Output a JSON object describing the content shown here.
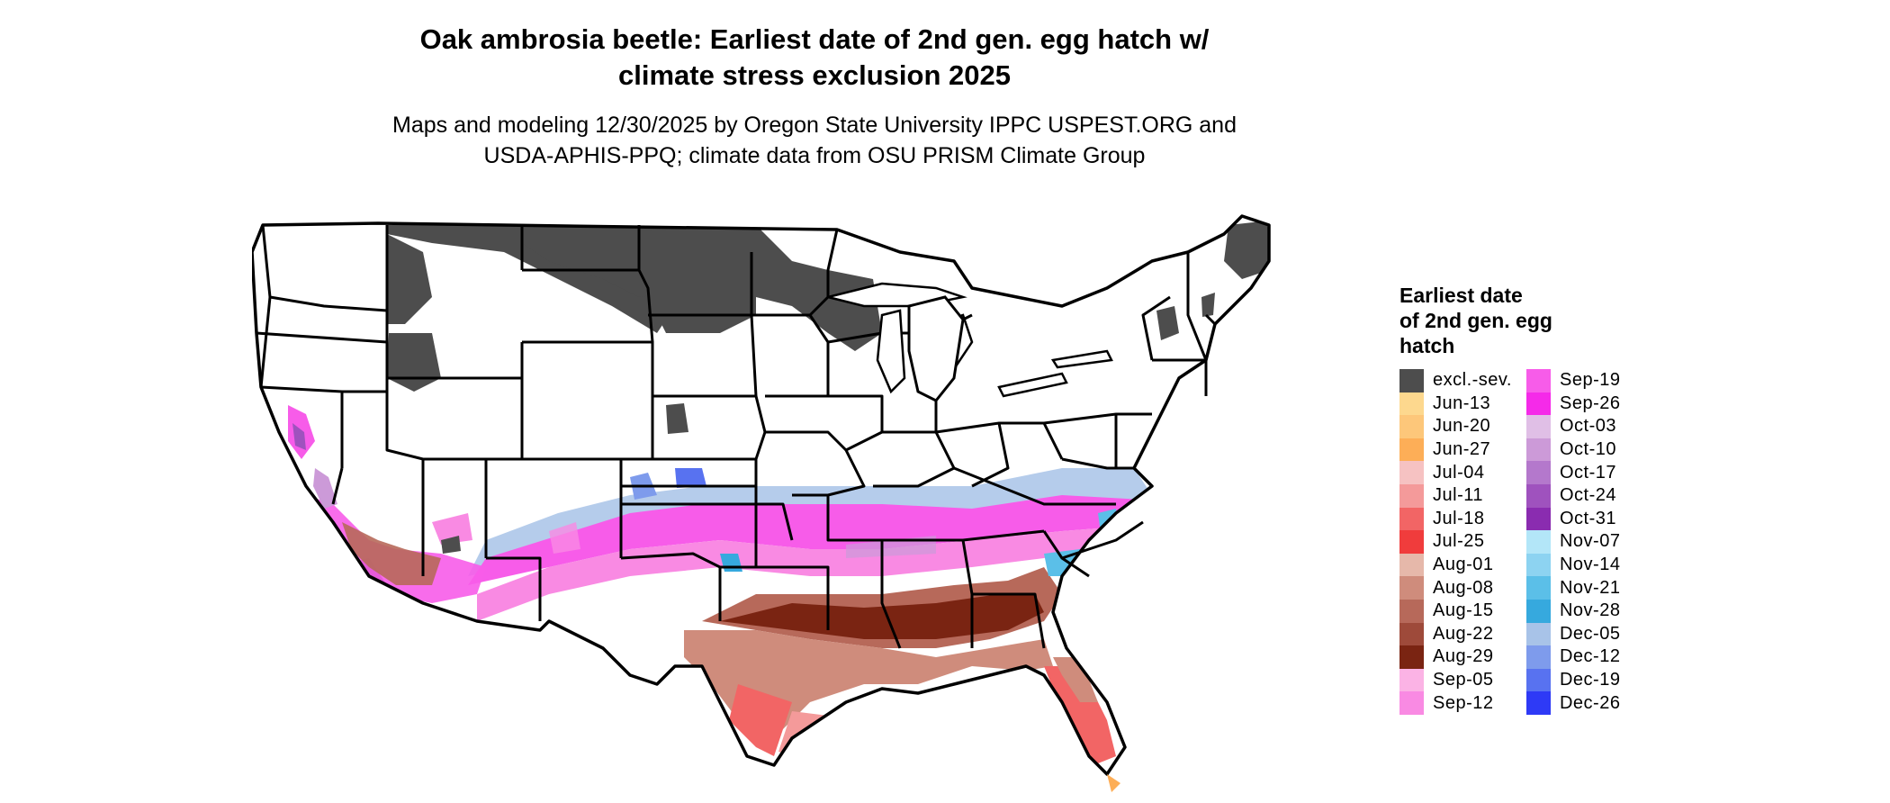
{
  "header": {
    "title_line1": "Oak ambrosia beetle: Earliest date of 2nd gen. egg hatch w/",
    "title_line2": "climate stress exclusion 2025",
    "subtitle_line1": "Maps and modeling 12/30/2025 by Oregon State University IPPC USPEST.ORG and",
    "subtitle_line2": "USDA-APHIS-PPQ; climate data from OSU PRISM Climate Group"
  },
  "legend": {
    "title_line1": "Earliest date",
    "title_line2": "of 2nd gen. egg",
    "title_line3": "hatch",
    "column1": [
      {
        "label": "excl.-sev.",
        "color": "#4d4d4d"
      },
      {
        "label": "Jun-13",
        "color": "#fdd88e"
      },
      {
        "label": "Jun-20",
        "color": "#fdc77a"
      },
      {
        "label": "Jun-27",
        "color": "#fdae57"
      },
      {
        "label": "Jul-04",
        "color": "#f6c2c2"
      },
      {
        "label": "Jul-11",
        "color": "#f49a9a"
      },
      {
        "label": "Jul-18",
        "color": "#f26565"
      },
      {
        "label": "Jul-25",
        "color": "#f03c3c"
      },
      {
        "label": "Aug-01",
        "color": "#e6b8aa"
      },
      {
        "label": "Aug-08",
        "color": "#cf8c7c"
      },
      {
        "label": "Aug-15",
        "color": "#b7695a"
      },
      {
        "label": "Aug-22",
        "color": "#9e4a3a"
      },
      {
        "label": "Aug-29",
        "color": "#7a2412"
      },
      {
        "label": "Sep-05",
        "color": "#fbb3e5"
      },
      {
        "label": "Sep-12",
        "color": "#f98ae3"
      }
    ],
    "column2": [
      {
        "label": "Sep-19",
        "color": "#f75ce9"
      },
      {
        "label": "Sep-26",
        "color": "#f52ae9"
      },
      {
        "label": "Oct-03",
        "color": "#e0bfe6"
      },
      {
        "label": "Oct-10",
        "color": "#cc9ad8"
      },
      {
        "label": "Oct-17",
        "color": "#b478cc"
      },
      {
        "label": "Oct-24",
        "color": "#9f52be"
      },
      {
        "label": "Oct-31",
        "color": "#8a2cb0"
      },
      {
        "label": "Nov-07",
        "color": "#b3e6f8"
      },
      {
        "label": "Nov-14",
        "color": "#8dd3f1"
      },
      {
        "label": "Nov-21",
        "color": "#5bbfe8"
      },
      {
        "label": "Nov-28",
        "color": "#36a9de"
      },
      {
        "label": "Dec-05",
        "color": "#a8c3e8"
      },
      {
        "label": "Dec-12",
        "color": "#7e9bec"
      },
      {
        "label": "Dec-19",
        "color": "#5872f0"
      },
      {
        "label": "Dec-26",
        "color": "#2e3af6"
      }
    ]
  }
}
